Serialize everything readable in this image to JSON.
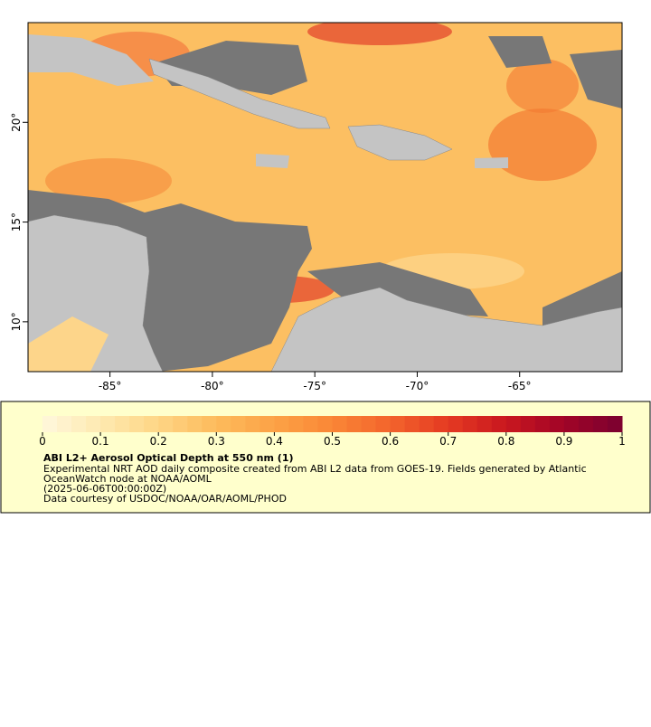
{
  "map": {
    "xlim": [
      -89,
      -60
    ],
    "ylim": [
      7.5,
      25
    ],
    "xticks": [
      {
        "value": -85,
        "label": "-85°"
      },
      {
        "value": -80,
        "label": "-80°"
      },
      {
        "value": -75,
        "label": "-75°"
      },
      {
        "value": -70,
        "label": "-70°"
      },
      {
        "value": -65,
        "label": "-65°"
      }
    ],
    "yticks": [
      {
        "value": 10,
        "label": "10°"
      },
      {
        "value": 15,
        "label": "15°"
      },
      {
        "value": 20,
        "label": "20°"
      }
    ]
  },
  "legend": {
    "colorbar": {
      "lim": [
        0,
        1
      ],
      "ticks": [
        0,
        0.1,
        0.2,
        0.3,
        0.4,
        0.5,
        0.6,
        0.7,
        0.8,
        0.9,
        1
      ],
      "colors": [
        "#fff8dc",
        "#fee9b0",
        "#fed585",
        "#fdbb5c",
        "#fca246",
        "#fa8636",
        "#f3642c",
        "#e43a22",
        "#c9171f",
        "#a10427",
        "#7a0030"
      ]
    },
    "title": "ABI L2+ Aerosol Optical Depth at 550 nm (1)",
    "description": [
      "Experimental NRT AOD daily composite created from ABI L2 data from GOES-19. Fields generated by Atlantic",
      "OceanWatch node at NOAA/AOML",
      "(2025-06-06T00:00:00Z)"
    ],
    "credit": "Data courtesy of USDOC/NOAA/OAR/AOML/PHOD"
  }
}
